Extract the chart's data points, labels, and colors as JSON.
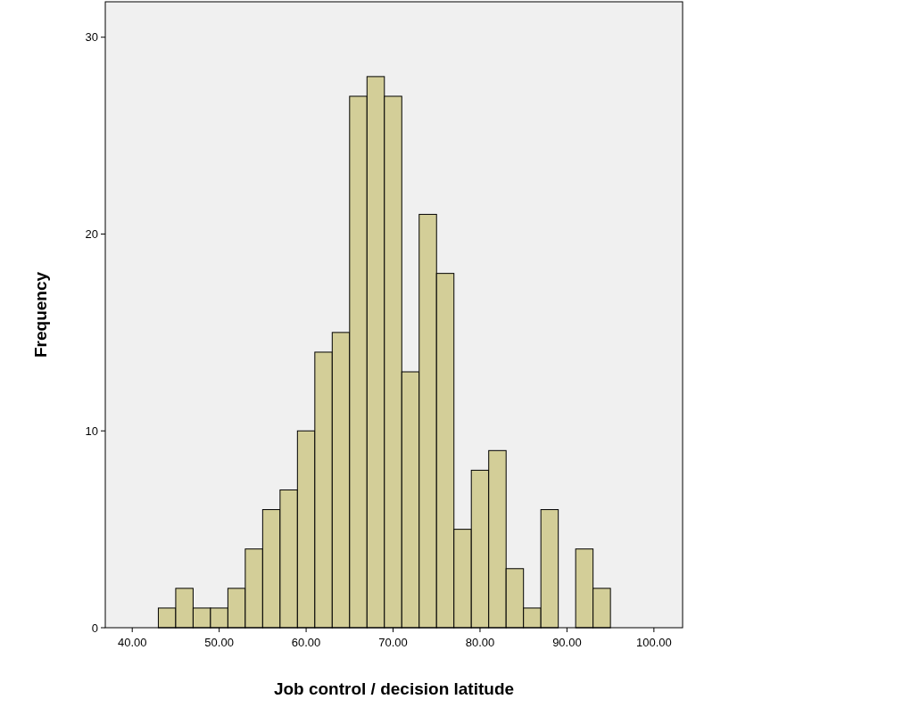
{
  "chart_data": {
    "type": "histogram",
    "xlabel": "Job control / decision latitude",
    "ylabel": "Frequency",
    "bins": [
      43,
      45,
      47,
      49,
      51,
      53,
      55,
      57,
      59,
      61,
      63,
      65,
      67,
      69,
      71,
      73,
      75,
      77,
      79,
      81,
      83,
      85,
      87,
      89,
      91,
      93,
      95
    ],
    "values": [
      1,
      2,
      1,
      1,
      2,
      4,
      6,
      7,
      10,
      14,
      15,
      27,
      28,
      27,
      13,
      21,
      18,
      5,
      8,
      9,
      3,
      1,
      6,
      0,
      4,
      2
    ],
    "color": "#d3ce98",
    "xlim": [
      36.9,
      103.3
    ],
    "ylim": [
      0,
      31.8
    ],
    "xticks": [
      {
        "value": 40,
        "label": "40.00"
      },
      {
        "value": 50,
        "label": "50.00"
      },
      {
        "value": 60,
        "label": "60.00"
      },
      {
        "value": 70,
        "label": "70.00"
      },
      {
        "value": 80,
        "label": "80.00"
      },
      {
        "value": 90,
        "label": "90.00"
      },
      {
        "value": 100,
        "label": "100.00"
      }
    ],
    "yticks": [
      0,
      10,
      20,
      30
    ],
    "grid": false
  }
}
